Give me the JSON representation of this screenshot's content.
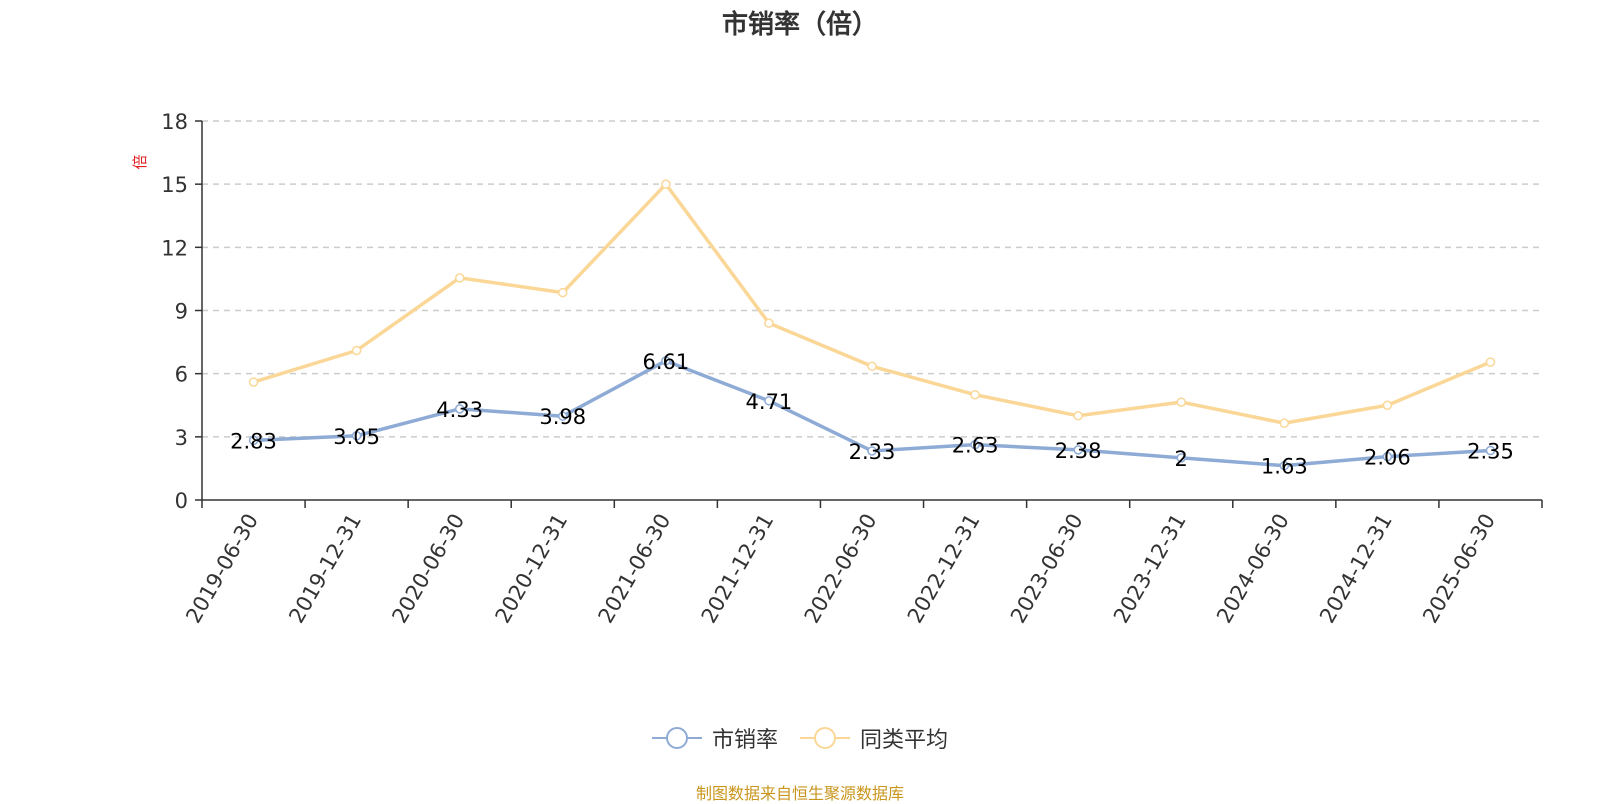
{
  "chart_data": {
    "type": "line",
    "title": "市销率（倍）",
    "ylabel": "倍",
    "xlabel": "",
    "categories": [
      "2019-06-30",
      "2019-12-31",
      "2020-06-30",
      "2020-12-31",
      "2021-06-30",
      "2021-12-31",
      "2022-06-30",
      "2022-12-31",
      "2023-06-30",
      "2023-12-31",
      "2024-06-30",
      "2024-12-31",
      "2025-06-30"
    ],
    "series": [
      {
        "name": "市销率",
        "color": "#8eabd6",
        "labels": true,
        "values": [
          2.83,
          3.05,
          4.33,
          3.98,
          6.61,
          4.71,
          2.33,
          2.63,
          2.38,
          2,
          1.63,
          2.06,
          2.35
        ]
      },
      {
        "name": "同类平均",
        "color": "#fad797",
        "labels": false,
        "values": [
          5.6,
          7.1,
          10.55,
          9.85,
          15.0,
          8.4,
          6.35,
          5.0,
          4.0,
          4.65,
          3.65,
          4.5,
          6.55
        ]
      }
    ],
    "ylim": [
      0,
      18
    ],
    "yticks": [
      0,
      3,
      6,
      9,
      12,
      15,
      18
    ],
    "grid": true,
    "legend": "bottom-center"
  },
  "source_note": "制图数据来自恒生聚源数据库",
  "colors": {
    "axis": "#333333",
    "grid": "#cccccc",
    "unit": "#e02020",
    "source": "#c9961d"
  }
}
